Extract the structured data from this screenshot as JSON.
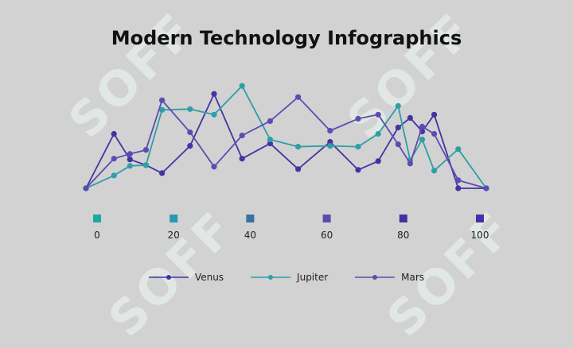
{
  "chart_data": {
    "type": "line",
    "title": "Modern Technology Infographics",
    "x": [
      0,
      7,
      11,
      15,
      19,
      26,
      32,
      39,
      46,
      53,
      61,
      68,
      73,
      78,
      81,
      84,
      87,
      93,
      100
    ],
    "series": [
      {
        "name": "Venus",
        "color": "#4532a2",
        "values": [
          0,
          68,
          36,
          29,
          19,
          53,
          118,
          37,
          56,
          24,
          58,
          23,
          34,
          76,
          88,
          71,
          92,
          0,
          0
        ]
      },
      {
        "name": "Jupiter",
        "color": "#2f9ea7",
        "values": [
          0,
          16,
          28,
          29,
          98,
          99,
          92,
          128,
          61,
          52,
          53,
          52,
          68,
          103,
          35,
          61,
          22,
          49,
          0
        ]
      },
      {
        "name": "Mars",
        "color": "#5b4db0",
        "values": [
          0,
          37,
          43,
          48,
          110,
          70,
          27,
          66,
          84,
          114,
          72,
          87,
          92,
          55,
          31,
          77,
          68,
          10,
          0
        ]
      }
    ],
    "xlim": [
      0,
      100
    ],
    "ylim": [
      0,
      140
    ],
    "xticks": [
      "0",
      "20",
      "40",
      "60",
      "80",
      "100"
    ],
    "tick_marker_colors": [
      "#1fa8a0",
      "#2a97b4",
      "#3a6fa4",
      "#5a4ea8",
      "#4530a0",
      "#4530a6"
    ],
    "legend_position": "bottom",
    "grid": false
  },
  "watermark": "SOFF"
}
